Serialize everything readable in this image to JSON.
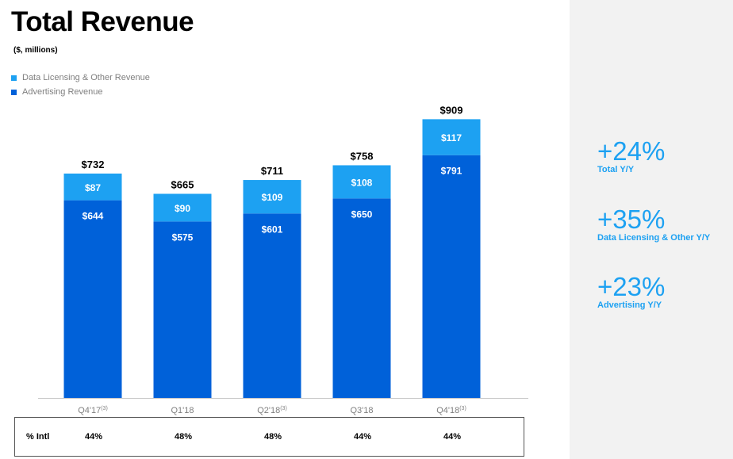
{
  "header": {
    "title": "Total Revenue",
    "subtitle": "($, millions)"
  },
  "legend": {
    "items": [
      "Data Licensing & Other Revenue",
      "Advertising Revenue"
    ]
  },
  "colors": {
    "data_licensing": "#1da1f2",
    "advertising": "#0061d9",
    "accent": "#1da1f2"
  },
  "chart_data": {
    "type": "bar",
    "stacked": true,
    "title": "Total Revenue",
    "ylabel": "($, millions)",
    "categories": [
      "Q4'17",
      "Q1'18",
      "Q2'18",
      "Q3'18",
      "Q4'18"
    ],
    "category_footnotes": [
      "(3)",
      "",
      "(3)",
      "",
      "(3)"
    ],
    "series": [
      {
        "name": "Advertising Revenue",
        "values": [
          644,
          575,
          601,
          650,
          791
        ],
        "labels": [
          "$644",
          "$575",
          "$601",
          "$650",
          "$791"
        ]
      },
      {
        "name": "Data Licensing & Other Revenue",
        "values": [
          87,
          90,
          109,
          108,
          117
        ],
        "labels": [
          "$87",
          "$90",
          "$109",
          "$108",
          "$117"
        ]
      }
    ],
    "totals": [
      732,
      665,
      711,
      758,
      909
    ],
    "total_labels": [
      "$732",
      "$665",
      "$711",
      "$758",
      "$909"
    ],
    "ylim": [
      0,
      909
    ]
  },
  "intl_table": {
    "label": "% Intl",
    "values": [
      "44%",
      "48%",
      "48%",
      "44%",
      "44%"
    ]
  },
  "stats": [
    {
      "value": "+24%",
      "label": "Total Y/Y"
    },
    {
      "value": "+35%",
      "label": "Data Licensing & Other Y/Y"
    },
    {
      "value": "+23%",
      "label": "Advertising Y/Y"
    }
  ]
}
